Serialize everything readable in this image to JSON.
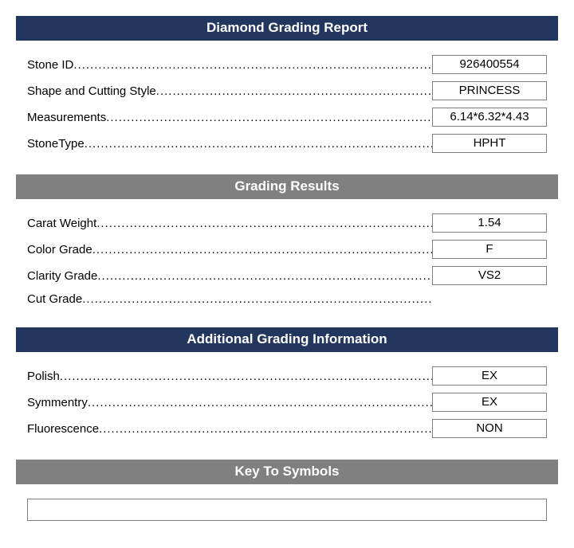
{
  "colors": {
    "navy": "#23365d",
    "gray": "#808080",
    "text": "#000000",
    "bg": "#ffffff"
  },
  "sections": {
    "main": {
      "title": "Diamond Grading Report",
      "header_style": "navy",
      "rows": [
        {
          "label": "Stone ID",
          "value": "926400554"
        },
        {
          "label": "Shape and Cutting Style",
          "value": "PRINCESS"
        },
        {
          "label": "Measurements",
          "value": "6.14*6.32*4.43"
        },
        {
          "label": "StoneType",
          "value": "HPHT"
        }
      ]
    },
    "grading": {
      "title": "Grading Results",
      "header_style": "gray",
      "rows": [
        {
          "label": "Carat Weight",
          "value": "1.54"
        },
        {
          "label": "Color Grade",
          "value": "F"
        },
        {
          "label": "Clarity Grade",
          "value": "VS2"
        },
        {
          "label": "Cut Grade",
          "value": ""
        }
      ]
    },
    "additional": {
      "title": "Additional Grading Information",
      "header_style": "navy",
      "rows": [
        {
          "label": "Polish",
          "value": "EX"
        },
        {
          "label": "Symmentry",
          "value": "EX"
        },
        {
          "label": "Fluorescence",
          "value": "NON"
        }
      ]
    },
    "symbols": {
      "title": "Key To Symbols",
      "header_style": "gray"
    }
  }
}
